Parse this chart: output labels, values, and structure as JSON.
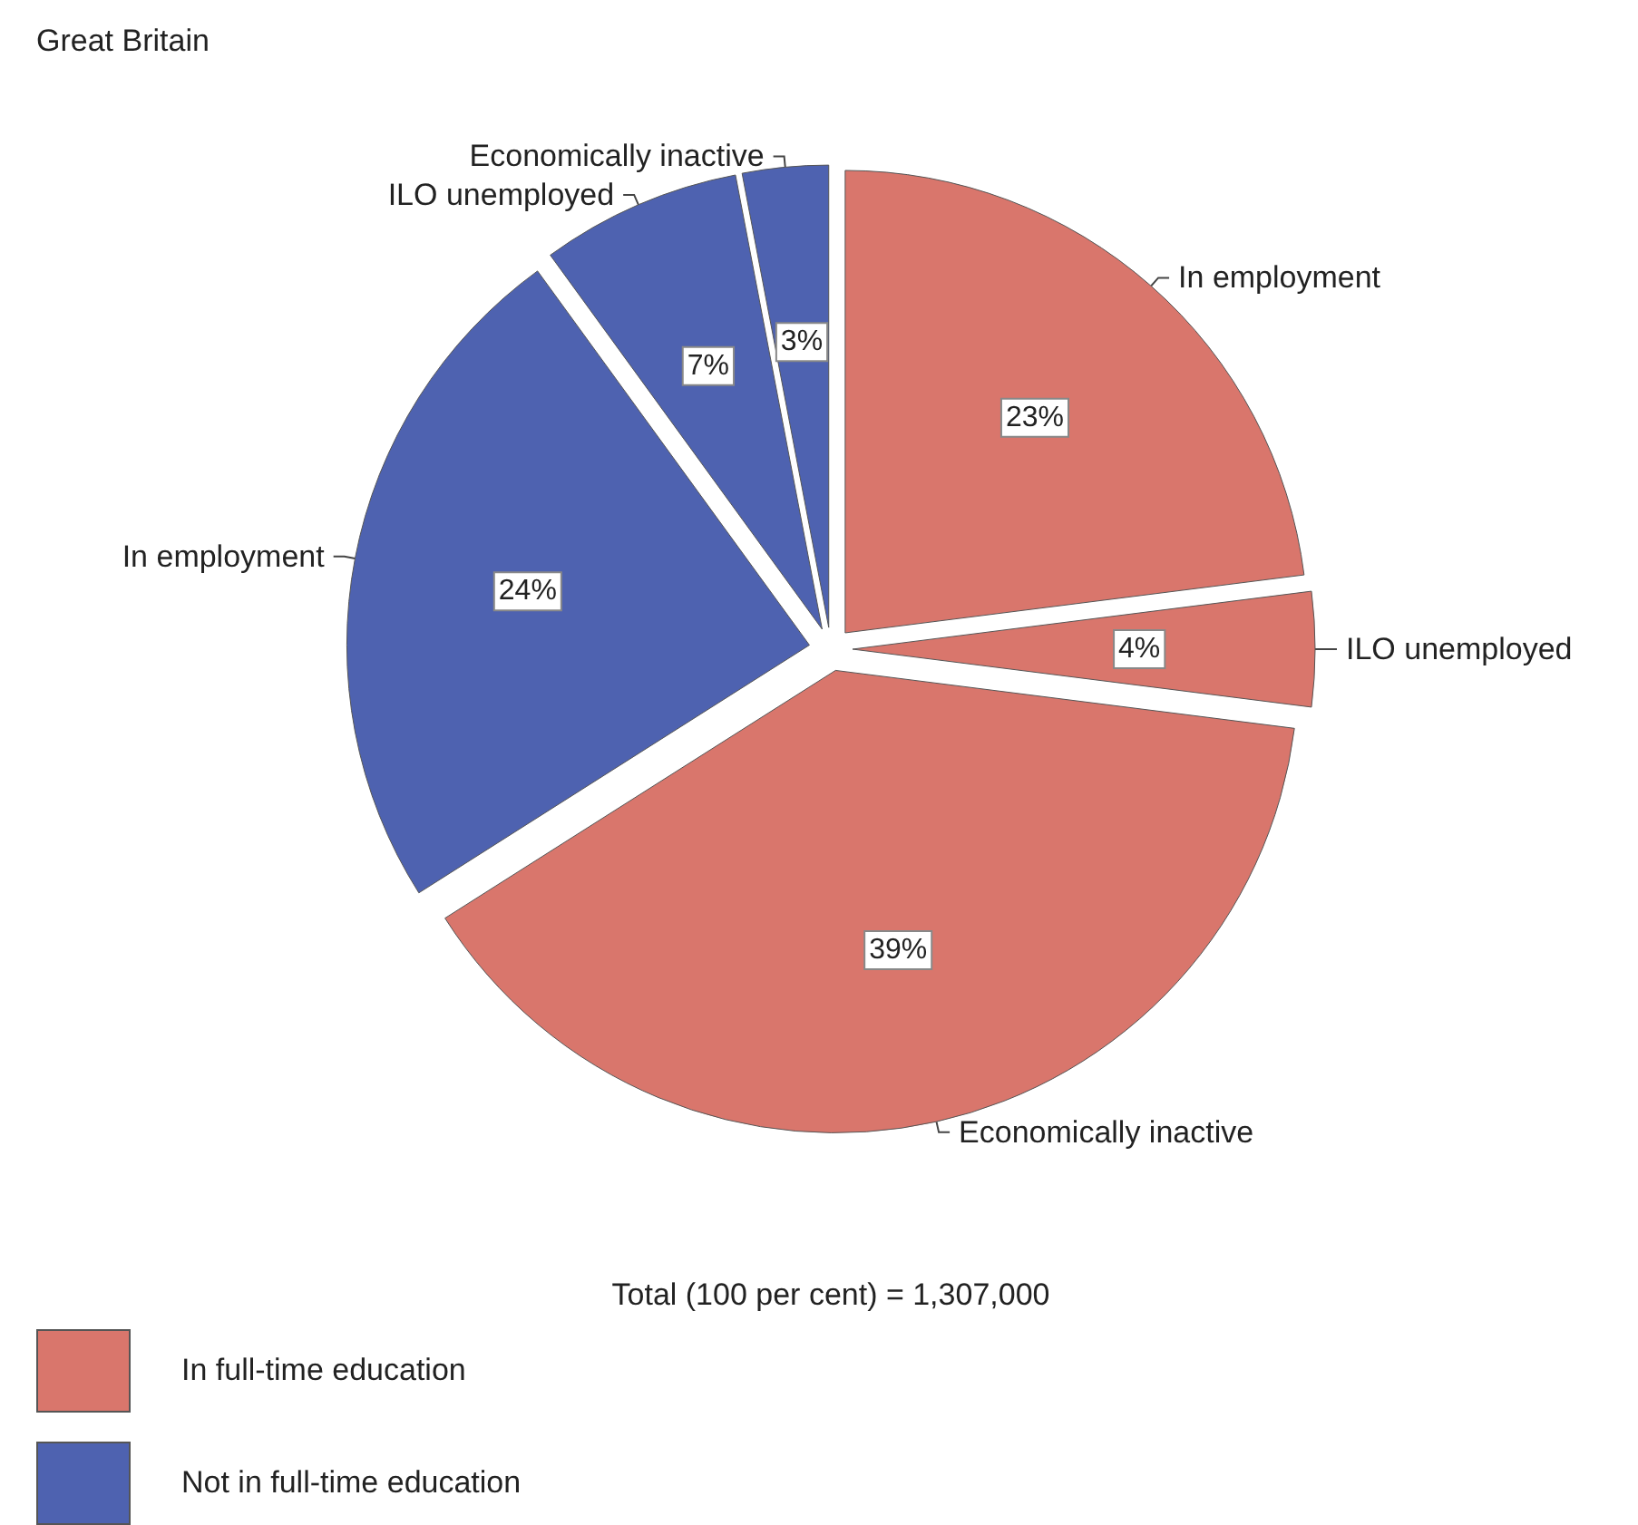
{
  "chart_data": {
    "type": "pie",
    "categories": [
      "In employment",
      "ILO unemployed",
      "Economically inactive",
      "In employment",
      "ILO unemployed",
      "Economically inactive"
    ],
    "values": [
      23,
      4,
      39,
      24,
      7,
      3
    ],
    "colors": [
      "#d9766c",
      "#d9766c",
      "#d9766c",
      "#4e62b0",
      "#4e62b0",
      "#4e62b0"
    ],
    "value_labels": [
      "23%",
      "4%",
      "39%",
      "24%",
      "7%",
      "3%"
    ],
    "annotations": [
      "Great Britain",
      "Total (100 per cent) = 1,307,000",
      "In full-time education",
      "Not in full-time education"
    ]
  }
}
